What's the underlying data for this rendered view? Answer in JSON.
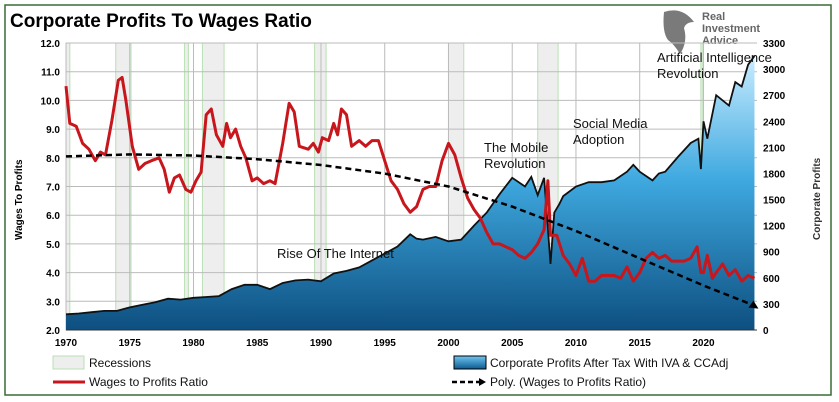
{
  "chart_data": {
    "type": "area+line",
    "title": "Corporate Profits To Wages Ratio",
    "ylabel": "Wages To Profits",
    "y2label": "Corporate Profits",
    "xlim": [
      1970,
      2024.2
    ],
    "ylim": [
      2.0,
      12.0
    ],
    "y2lim": [
      0,
      3300
    ],
    "xticks": [
      "1970",
      "1975",
      "1980",
      "1985",
      "1990",
      "1995",
      "2000",
      "2005",
      "2010",
      "2015",
      "2020"
    ],
    "yticks": [
      "2.0",
      "3.0",
      "4.0",
      "5.0",
      "6.0",
      "7.0",
      "8.0",
      "9.0",
      "10.0",
      "11.0",
      "12.0"
    ],
    "y2ticks": [
      "0",
      "300",
      "600",
      "900",
      "1200",
      "1500",
      "1800",
      "2100",
      "2400",
      "2700",
      "3000",
      "3300"
    ],
    "recessions": [
      [
        1970.0,
        1970.3
      ],
      [
        1973.9,
        1975.1
      ],
      [
        1979.3,
        1979.6
      ],
      [
        1980.7,
        1982.4
      ],
      [
        1989.5,
        1990.4
      ],
      [
        2000.0,
        2001.2
      ],
      [
        2007.0,
        2008.6
      ],
      [
        2019.8,
        2019.9
      ]
    ],
    "series": [
      {
        "name": "Corporate Profits After Tax With IVA & CCAdj",
        "axis": "right",
        "type": "area",
        "x": [
          1970,
          1971,
          1972,
          1973,
          1974,
          1975,
          1976,
          1977,
          1978,
          1979,
          1980,
          1981,
          1982,
          1983,
          1984,
          1985,
          1986,
          1987,
          1988,
          1989,
          1990,
          1991,
          1992,
          1993,
          1994,
          1995,
          1996,
          1997,
          1997.5,
          1998,
          1999,
          2000,
          2001,
          2002,
          2003,
          2004,
          2005,
          2006,
          2006.5,
          2007,
          2007.5,
          2008,
          2008.3,
          2008.7,
          2009,
          2010,
          2011,
          2012,
          2013,
          2014,
          2014.5,
          2015,
          2016,
          2016.5,
          2017,
          2018,
          2019,
          2019.6,
          2019.8,
          2020,
          2020.3,
          2021,
          2022,
          2022.5,
          2023,
          2023.5,
          2024
        ],
        "values": [
          180,
          190,
          205,
          220,
          220,
          260,
          290,
          320,
          360,
          350,
          370,
          380,
          390,
          470,
          520,
          520,
          470,
          540,
          570,
          580,
          560,
          650,
          680,
          720,
          800,
          880,
          960,
          1100,
          1050,
          1040,
          1070,
          1020,
          1040,
          1200,
          1350,
          1560,
          1750,
          1650,
          1760,
          1550,
          1750,
          760,
          1350,
          1450,
          1540,
          1650,
          1700,
          1700,
          1720,
          1820,
          1900,
          1820,
          1720,
          1800,
          1820,
          1990,
          2150,
          2200,
          1850,
          2400,
          2200,
          2700,
          2580,
          2850,
          2800,
          3050,
          3150
        ]
      },
      {
        "name": "Wages to Profits Ratio",
        "axis": "left",
        "type": "line",
        "color": "#c8161d",
        "x": [
          1970,
          1970.3,
          1970.8,
          1971.3,
          1971.8,
          1972.3,
          1972.7,
          1973.1,
          1973.6,
          1974.1,
          1974.4,
          1974.7,
          1975.2,
          1975.7,
          1976.2,
          1976.7,
          1977.3,
          1977.7,
          1978.1,
          1978.5,
          1978.9,
          1979.4,
          1979.8,
          1980.2,
          1980.6,
          1981,
          1981.4,
          1981.8,
          1982.3,
          1982.6,
          1982.9,
          1983.3,
          1983.7,
          1984.1,
          1984.6,
          1985,
          1985.5,
          1986,
          1986.4,
          1987,
          1987.5,
          1987.9,
          1988.3,
          1989,
          1989.4,
          1989.8,
          1990.1,
          1990.6,
          1991,
          1991.3,
          1991.6,
          1992,
          1992.4,
          1993,
          1993.5,
          1994,
          1994.5,
          1995,
          1995.5,
          1996,
          1996.5,
          1997,
          1997.5,
          1998,
          1998.5,
          1999,
          1999.5,
          2000,
          2000.5,
          2001,
          2001.5,
          2002,
          2002.5,
          2003,
          2003.5,
          2004,
          2004.5,
          2005,
          2005.5,
          2006,
          2006.5,
          2007,
          2007.5,
          2007.8,
          2008,
          2008.5,
          2009,
          2009.5,
          2010,
          2010.5,
          2011,
          2011.5,
          2012,
          2012.5,
          2013,
          2013.5,
          2014,
          2014.5,
          2015,
          2015.5,
          2016,
          2016.5,
          2017,
          2017.5,
          2018,
          2018.5,
          2019,
          2019.5,
          2019.8,
          2020,
          2020.3,
          2020.7,
          2021,
          2021.5,
          2022,
          2022.5,
          2023,
          2023.5,
          2024
        ],
        "values": [
          10.5,
          9.2,
          9.1,
          8.5,
          8.3,
          7.9,
          8.2,
          8.1,
          9.3,
          10.7,
          10.8,
          10.0,
          8.4,
          7.6,
          7.8,
          7.9,
          8.0,
          7.6,
          6.8,
          7.3,
          7.4,
          6.9,
          6.8,
          7.2,
          7.5,
          9.5,
          9.7,
          8.8,
          8.4,
          9.2,
          8.7,
          9.0,
          8.4,
          8.0,
          7.2,
          7.3,
          7.1,
          7.2,
          7.1,
          8.5,
          9.9,
          9.6,
          8.4,
          8.3,
          8.5,
          8.2,
          8.7,
          8.6,
          9.2,
          8.8,
          9.7,
          9.5,
          8.4,
          8.6,
          8.4,
          8.6,
          8.6,
          7.9,
          7.2,
          6.9,
          6.4,
          6.1,
          6.3,
          6.9,
          7.0,
          7.0,
          7.9,
          8.5,
          8.1,
          7.3,
          6.6,
          6.2,
          5.9,
          5.4,
          5.0,
          5.0,
          4.9,
          4.8,
          4.6,
          4.5,
          4.7,
          5.0,
          5.5,
          7.2,
          5.3,
          5.3,
          4.6,
          4.3,
          3.9,
          4.5,
          3.7,
          3.7,
          3.9,
          3.9,
          3.9,
          3.8,
          4.2,
          3.7,
          4.0,
          4.5,
          4.7,
          4.5,
          4.6,
          4.4,
          4.4,
          4.4,
          4.5,
          4.9,
          4.0,
          4.0,
          4.6,
          3.8,
          4.0,
          4.3,
          3.9,
          4.1,
          3.7,
          3.9,
          3.8
        ]
      },
      {
        "name": "Poly. (Wages to Profits Ratio)",
        "axis": "left",
        "type": "dashed-line",
        "x": [
          1970,
          1975,
          1980,
          1985,
          1990,
          1995,
          2000,
          2005,
          2010,
          2015,
          2020,
          2024
        ],
        "values": [
          8.05,
          8.12,
          8.08,
          7.95,
          7.75,
          7.45,
          7.0,
          6.3,
          5.45,
          4.5,
          3.55,
          2.85
        ]
      }
    ],
    "annotations": [
      "Artificial Intelligence",
      "Revolution",
      "Social Media",
      "Adoption",
      "The Mobile",
      "Revolution",
      "Rise Of The Internet"
    ],
    "legend": {
      "recessions": "Recessions",
      "profits": "Corporate Profits After Tax With IVA & CCAdj",
      "ratio": "Wages to Profits Ratio",
      "poly": "Poly. (Wages to Profits Ratio)"
    },
    "logo": "Real Investment Advice",
    "colors": {
      "ratio": "#c8161d",
      "border": "#3a6b35",
      "recession": "#eeeeee",
      "recession_edge": "#b9e0b3"
    }
  }
}
